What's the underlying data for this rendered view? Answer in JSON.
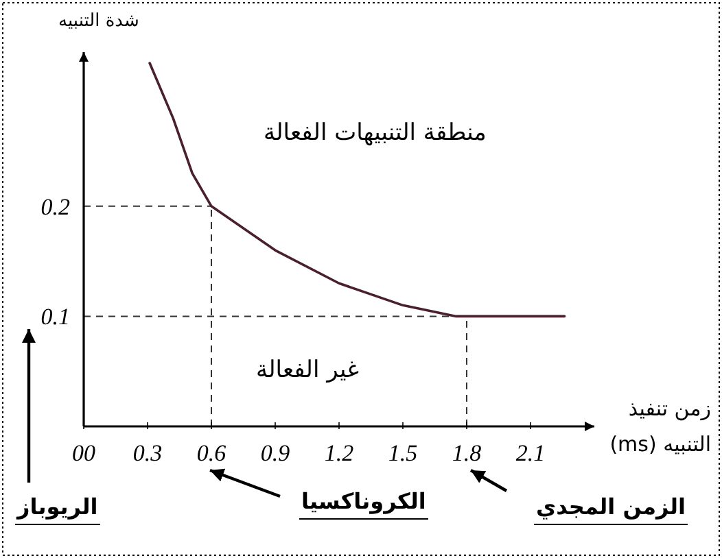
{
  "chart_data": {
    "type": "line",
    "xlabel": "زمن تنفيذ التنبيه (ms)",
    "ylabel": "شدة التنبيه",
    "x": [
      0.31,
      0.42,
      0.51,
      0.6,
      0.9,
      1.2,
      1.5,
      1.75,
      2.26
    ],
    "values": [
      0.33,
      0.28,
      0.23,
      0.2,
      0.16,
      0.13,
      0.11,
      0.1,
      0.1
    ],
    "color": "#4a2030",
    "line_style": "solid",
    "xlim": [
      0,
      2.4
    ],
    "ylim": [
      0,
      0.34
    ],
    "xticks": [
      {
        "value": 0,
        "label": "00"
      },
      0.3,
      0.6,
      0.9,
      1.2,
      1.5,
      1.8,
      2.1
    ],
    "yticks": [
      0.1,
      0.2
    ],
    "ref_lines": [
      {
        "axis": "y",
        "value": 0.2,
        "line_style": "dashed",
        "color": "#333333"
      },
      {
        "axis": "y",
        "value": 0.1,
        "line_style": "dashed",
        "color": "#333333"
      },
      {
        "axis": "x",
        "value": 0.6,
        "line_style": "dashed",
        "color": "#333333"
      },
      {
        "axis": "x",
        "value": 1.8,
        "line_style": "dashed",
        "color": "#333333"
      }
    ],
    "annotations": [
      "منطقة التنبيهات الفعالة",
      "غير الفعالة",
      "الريوباز",
      "الكروناكسيا",
      "الزمن المجدي"
    ]
  }
}
